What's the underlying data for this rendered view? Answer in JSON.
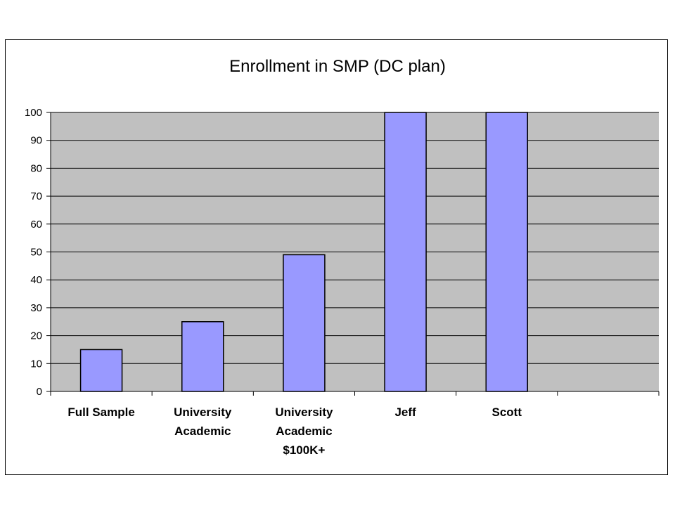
{
  "chart_data": {
    "type": "bar",
    "title": "Enrollment in SMP (DC plan)",
    "categories": [
      [
        "Full Sample"
      ],
      [
        "University",
        "Academic"
      ],
      [
        "University",
        "Academic",
        "$100K+"
      ],
      [
        "Jeff"
      ],
      [
        "Scott"
      ],
      [
        ""
      ]
    ],
    "series": [
      {
        "values": [
          15,
          25,
          49,
          100,
          100,
          null
        ]
      }
    ],
    "ylim": [
      0,
      100
    ],
    "yticks": [
      0,
      10,
      20,
      30,
      40,
      50,
      60,
      70,
      80,
      90,
      100
    ],
    "grid": true,
    "legend": "none",
    "colors": {
      "plot_background": "#c0c0c0",
      "bar_fill": "#9999ff",
      "bar_stroke": "#000000",
      "gridline": "#000000",
      "text": "#000000"
    }
  }
}
